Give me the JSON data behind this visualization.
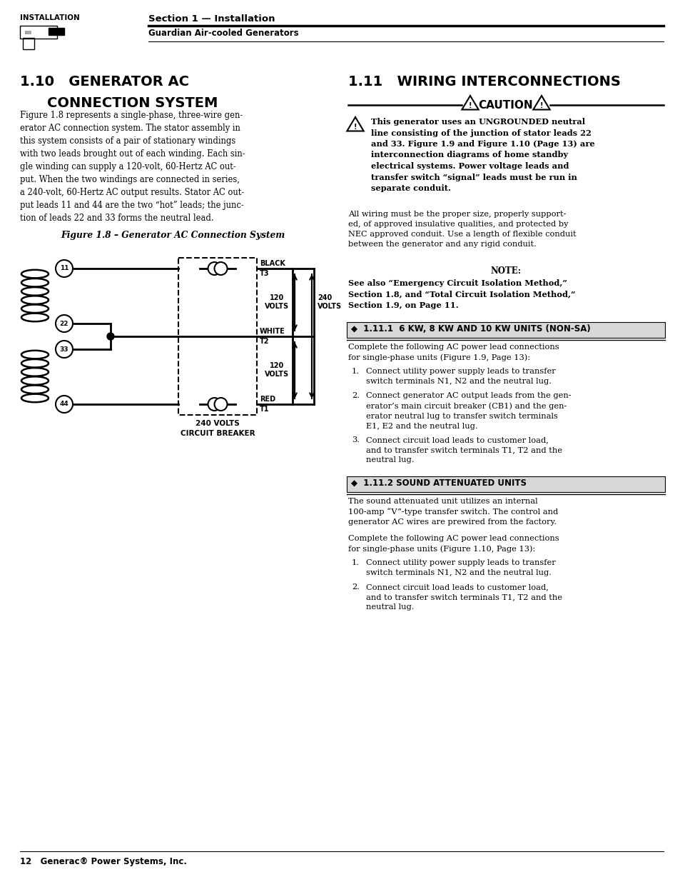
{
  "page_bg": "#ffffff",
  "header_label": "INSTALLATION",
  "header_line1": "Section 1 — Installation",
  "header_line2": "Guardian Air-cooled Generators",
  "section110_title1": "1.10   GENERATOR AC",
  "section110_title2": "        CONNECTION SYSTEM",
  "section110_body": "Figure 1.8 represents a single-phase, three-wire gen-\nerator AC connection system. The stator assembly in\nthis system consists of a pair of stationary windings\nwith two leads brought out of each winding. Each sin-\ngle winding can supply a 120-volt, 60-Hertz AC out-\nput. When the two windings are connected in series,\na 240-volt, 60-Hertz AC output results. Stator AC out-\nput leads 11 and 44 are the two “hot” leads; the junc-\ntion of leads 22 and 33 forms the neutral lead.",
  "fig_caption": "Figure 1.8 – Generator AC Connection System",
  "section111_title": "1.11   WIRING INTERCONNECTIONS",
  "caution_text": "CAUTION",
  "caution_body": "This generator uses an UNGROUNDED neutral\nline consisting of the junction of stator leads 22\nand 33. Figure 1.9 and Figure 1.10 (Page 13) are\ninterconnection diagrams of home standby\nelectrical systems. Power voltage leads and\ntransfer switch “signal” leads must be run in\nseparate conduit.",
  "para1": "All wiring must be the proper size, properly support-\ned, of approved insulative qualities, and protected by\nNEC approved conduit. Use a length of flexible conduit\nbetween the generator and any rigid conduit.",
  "note_label": "NOTE:",
  "note_body": "See also “Emergency Circuit Isolation Method,”\nSection 1.8, and “Total Circuit Isolation Method,”\nSection 1.9, on Page 11.",
  "sec1111_title": "◆  1.11.1  6 KW, 8 KW AND 10 KW UNITS (NON-SA)",
  "sec1111_intro": "Complete the following AC power lead connections\nfor single-phase units (Figure 1.9, Page 13):",
  "sec1111_items": [
    "Connect utility power supply leads to transfer\nswitch terminals N1, N2 and the neutral lug.",
    "Connect generator AC output leads from the gen-\nerator’s main circuit breaker (CB1) and the gen-\nerator neutral lug to transfer switch terminals\nE1, E2 and the neutral lug.",
    "Connect circuit load leads to customer load,\nand to transfer switch terminals T1, T2 and the\nneutral lug."
  ],
  "sec1112_title": "◆  1.11.2 SOUND ATTENUATED UNITS",
  "sec1112_para": "The sound attenuated unit utilizes an internal\n100-amp “V”-type transfer switch. The control and\ngenerator AC wires are prewired from the factory.",
  "sec1112_intro": "Complete the following AC power lead connections\nfor single-phase units (Figure 1.10, Page 13):",
  "sec1112_items": [
    "Connect utility power supply leads to transfer\nswitch terminals N1, N2 and the neutral lug.",
    "Connect circuit load leads to customer load,\nand to transfer switch terminals T1, T2 and the\nneutral lug."
  ],
  "footer_text": "12   Generac® Power Systems, Inc."
}
